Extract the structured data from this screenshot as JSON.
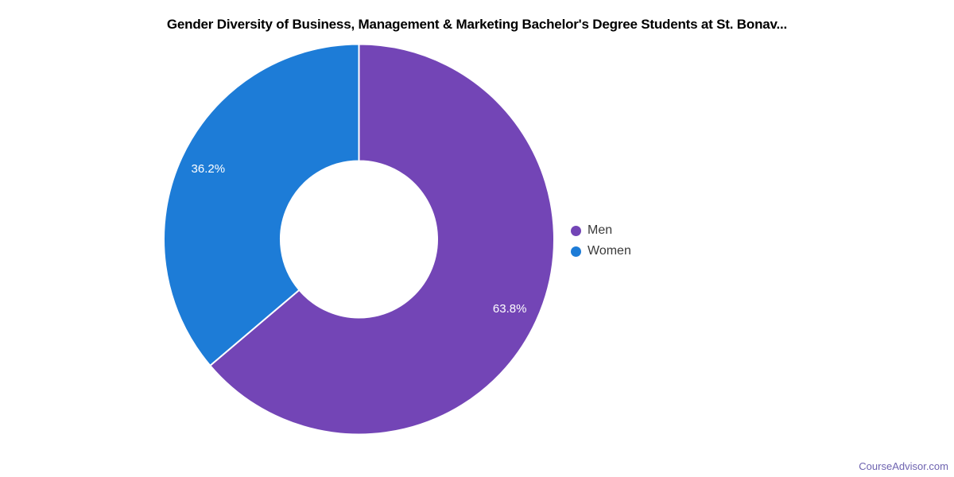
{
  "chart_data": {
    "type": "pie",
    "subtype": "donut",
    "title": "Gender Diversity of Business, Management & Marketing Bachelor's Degree Students at St. Bonav...",
    "slices": [
      {
        "label": "Men",
        "value": 63.8,
        "display": "63.8%",
        "color": "#7345b6"
      },
      {
        "label": "Women",
        "value": 36.2,
        "display": "36.2%",
        "color": "#1d7cd7"
      }
    ],
    "total": 100,
    "unit": "%",
    "start_angle_deg": 0,
    "direction": "clockwise",
    "inner_radius_ratio": 0.4,
    "data_label_color": "#ffffff",
    "slice_border_color": "#ffffff",
    "legend": {
      "position": "right"
    },
    "title_color": "#000000"
  },
  "footer": {
    "watermark": "CourseAdvisor.com",
    "watermark_color": "#6e63b0"
  }
}
